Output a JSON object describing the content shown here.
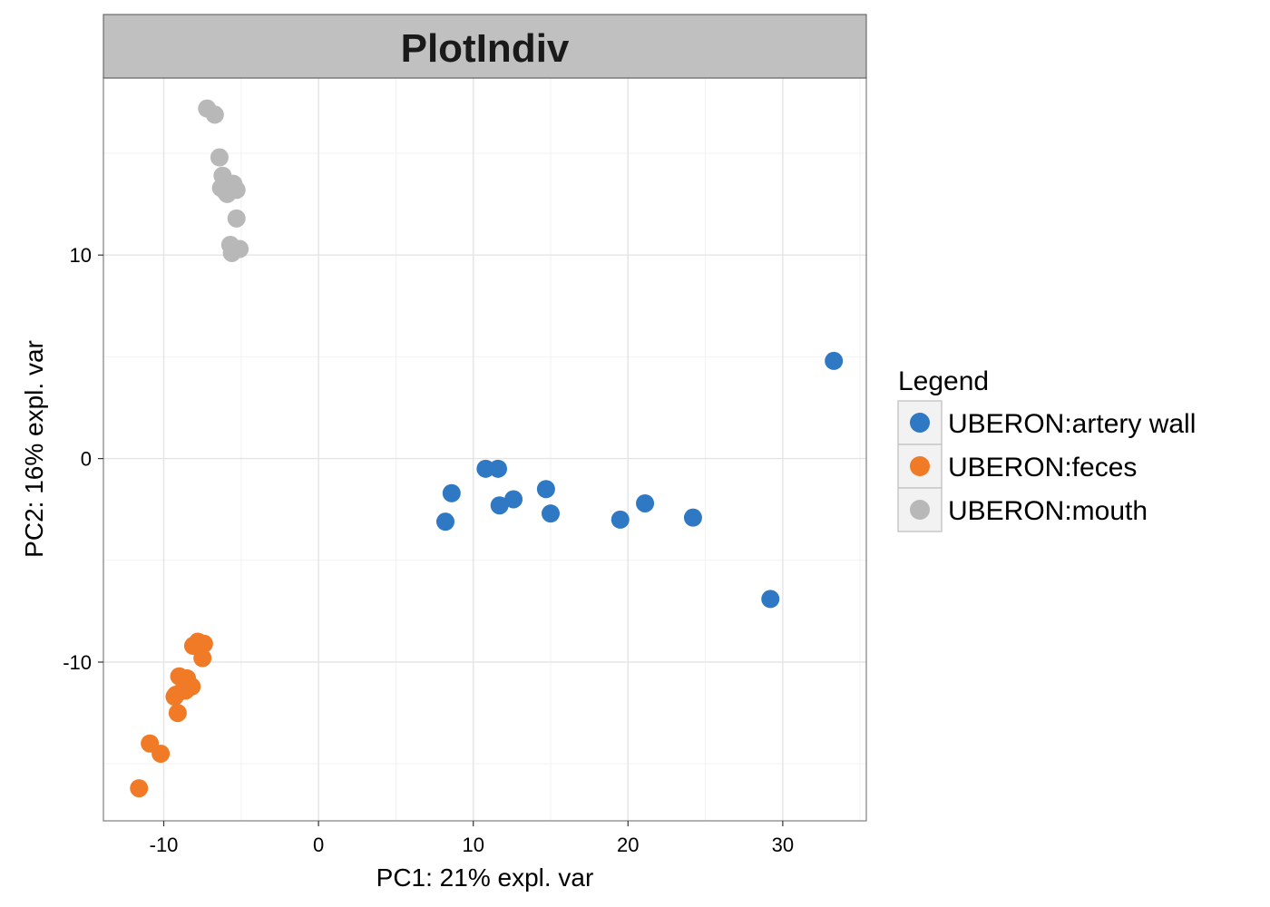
{
  "chart_data": {
    "type": "scatter",
    "title": "PlotIndiv",
    "xlabel": "PC1: 21% expl. var",
    "ylabel": "PC2: 16% expl. var",
    "xlim": [
      -13.9,
      35.4
    ],
    "ylim": [
      -17.8,
      18.7
    ],
    "xticks": [
      -10,
      0,
      10,
      20,
      30
    ],
    "yticks": [
      -10,
      0,
      10
    ],
    "grid": true,
    "legend": {
      "title": "Legend",
      "position": "right"
    },
    "series": [
      {
        "name": "UBERON:artery wall",
        "color": "#2f78c4",
        "points": [
          [
            33.3,
            4.8
          ],
          [
            29.2,
            -6.9
          ],
          [
            24.2,
            -2.9
          ],
          [
            21.1,
            -2.2
          ],
          [
            19.5,
            -3.0
          ],
          [
            15.0,
            -2.7
          ],
          [
            14.7,
            -1.5
          ],
          [
            12.6,
            -2.0
          ],
          [
            11.7,
            -2.3
          ],
          [
            11.6,
            -0.5
          ],
          [
            10.8,
            -0.5
          ],
          [
            8.6,
            -1.7
          ],
          [
            8.2,
            -3.1
          ]
        ]
      },
      {
        "name": "UBERON:feces",
        "color": "#f07a26",
        "points": [
          [
            -7.4,
            -9.1
          ],
          [
            -7.8,
            -9.0
          ],
          [
            -8.1,
            -9.2
          ],
          [
            -7.5,
            -9.8
          ],
          [
            -9.0,
            -10.7
          ],
          [
            -8.5,
            -10.8
          ],
          [
            -8.2,
            -11.2
          ],
          [
            -8.7,
            -11.3
          ],
          [
            -8.6,
            -11.4
          ],
          [
            -9.2,
            -11.6
          ],
          [
            -9.3,
            -11.7
          ],
          [
            -9.1,
            -12.5
          ],
          [
            -10.9,
            -14.0
          ],
          [
            -10.2,
            -14.5
          ],
          [
            -11.6,
            -16.2
          ]
        ]
      },
      {
        "name": "UBERON:mouth",
        "color": "#b8b8b8",
        "points": [
          [
            -7.2,
            17.2
          ],
          [
            -6.7,
            16.9
          ],
          [
            -6.4,
            14.8
          ],
          [
            -6.2,
            13.9
          ],
          [
            -5.5,
            13.5
          ],
          [
            -6.3,
            13.3
          ],
          [
            -5.7,
            13.4
          ],
          [
            -5.3,
            13.2
          ],
          [
            -5.9,
            13.0
          ],
          [
            -6.0,
            13.1
          ],
          [
            -5.3,
            11.8
          ],
          [
            -5.7,
            10.5
          ],
          [
            -5.5,
            10.3
          ],
          [
            -5.1,
            10.3
          ],
          [
            -5.6,
            10.1
          ]
        ]
      }
    ]
  }
}
